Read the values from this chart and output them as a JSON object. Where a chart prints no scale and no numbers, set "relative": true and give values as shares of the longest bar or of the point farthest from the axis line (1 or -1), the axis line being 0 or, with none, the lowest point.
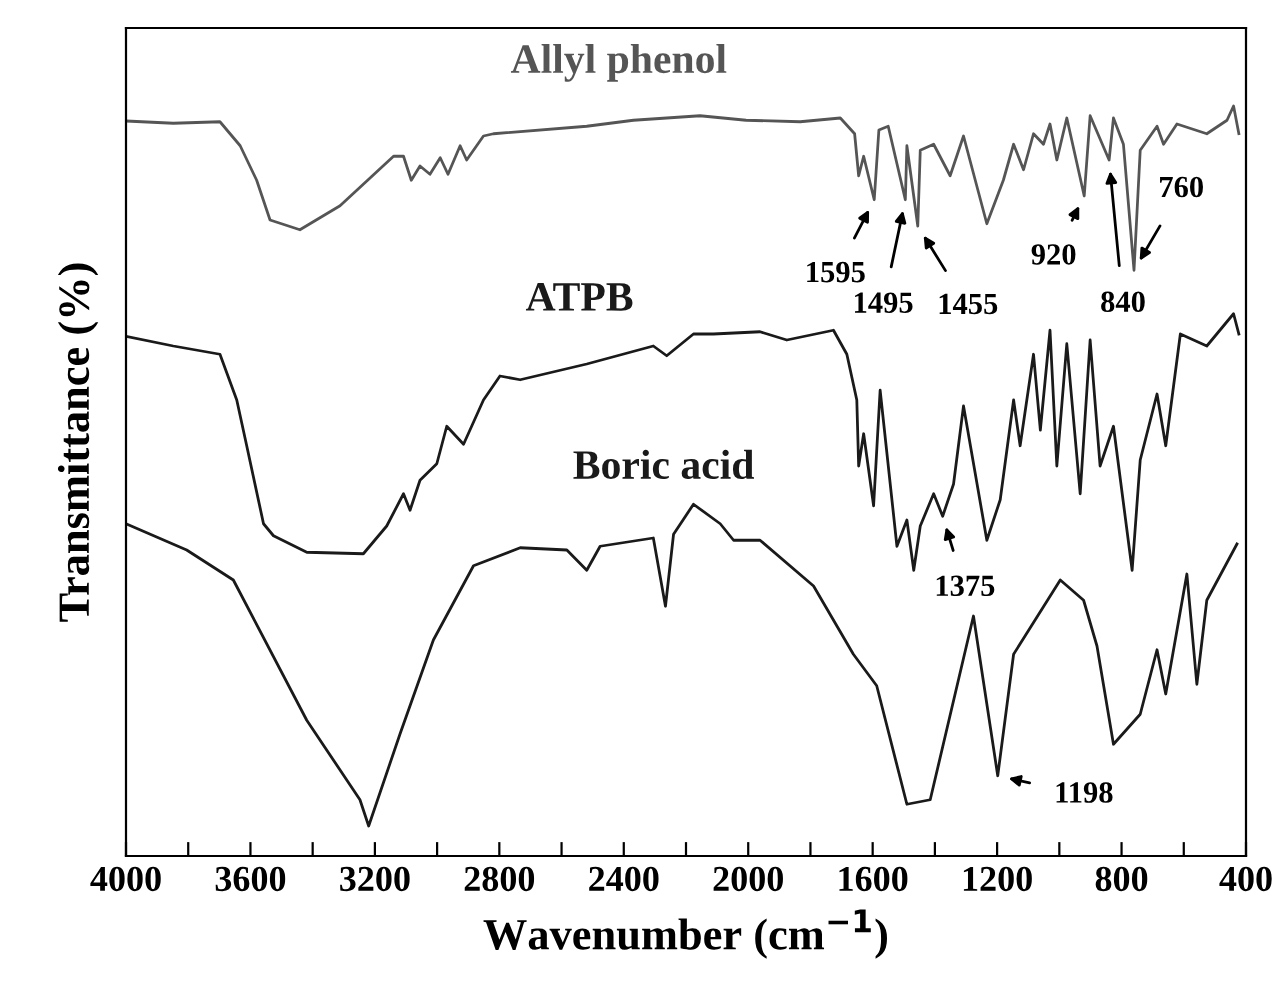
{
  "chart_data": {
    "type": "line",
    "relative": true,
    "xlabel": "Wavenumber (cm$^{−1}$)",
    "ylabel": "Transmittance (%)",
    "xlim": [
      4000,
      400
    ],
    "xticks": [
      4000,
      {
        "value": 3800,
        "label": null
      },
      3600,
      {
        "value": 3400,
        "label": null
      },
      3200,
      {
        "value": 3000,
        "label": null
      },
      2800,
      {
        "value": 2600,
        "label": null
      },
      2400,
      {
        "value": 2200,
        "label": null
      },
      2000,
      {
        "value": 1800,
        "label": null
      },
      1600,
      {
        "value": 1400,
        "label": null
      },
      1200,
      {
        "value": 1000,
        "label": null
      },
      800,
      {
        "value": 600,
        "label": null
      },
      400
    ],
    "tick_labels": "x",
    "grid": false,
    "legend": false,
    "marker": "none",
    "line_style": "solid",
    "series": [
      {
        "name": "Allyl phenol",
        "color": "#555555",
        "x": [
          4000,
          3848,
          3698,
          3633,
          3580,
          3537,
          3441,
          3312,
          3140,
          3108,
          3083,
          3055,
          3023,
          2990,
          2965,
          2926,
          2905,
          2851,
          2819,
          2519,
          2369,
          2155,
          2007,
          1833,
          1704,
          1658,
          1645,
          1629,
          1595,
          1580,
          1550,
          1495,
          1490,
          1455,
          1447,
          1404,
          1351,
          1308,
          1233,
          1180,
          1147,
          1115,
          1083,
          1051,
          1030,
          1008,
          976,
          920,
          901,
          840,
          826,
          794,
          760,
          740,
          686,
          665,
          622,
          526,
          461,
          440,
          423
        ],
        "values": [
          0.98,
          0.977,
          0.979,
          0.947,
          0.901,
          0.848,
          0.835,
          0.867,
          0.933,
          0.933,
          0.901,
          0.92,
          0.909,
          0.931,
          0.909,
          0.947,
          0.928,
          0.96,
          0.963,
          0.973,
          0.981,
          0.987,
          0.981,
          0.979,
          0.984,
          0.963,
          0.907,
          0.933,
          0.875,
          0.968,
          0.973,
          0.875,
          0.947,
          0.84,
          0.941,
          0.949,
          0.907,
          0.96,
          0.843,
          0.901,
          0.949,
          0.915,
          0.963,
          0.949,
          0.976,
          0.928,
          0.984,
          0.88,
          0.987,
          0.928,
          0.984,
          0.949,
          0.781,
          0.941,
          0.973,
          0.949,
          0.976,
          0.963,
          0.981,
          1.0,
          0.963
        ]
      },
      {
        "name": "ATPB",
        "color": "#1a1a1a",
        "x": [
          4000,
          3848,
          3698,
          3644,
          3612,
          3558,
          3526,
          3419,
          3237,
          3162,
          3108,
          3087,
          3055,
          3001,
          2969,
          2915,
          2851,
          2798,
          2733,
          2519,
          2305,
          2262,
          2176,
          2112,
          1962,
          1876,
          1726,
          1683,
          1651,
          1645,
          1629,
          1597,
          1576,
          1522,
          1490,
          1468,
          1447,
          1404,
          1375,
          1340,
          1308,
          1233,
          1190,
          1147,
          1126,
          1083,
          1061,
          1030,
          1008,
          976,
          933,
          901,
          869,
          826,
          766,
          740,
          686,
          658,
          611,
          526,
          472,
          440,
          423
        ],
        "values": [
          0.693,
          0.68,
          0.669,
          0.608,
          0.547,
          0.443,
          0.427,
          0.405,
          0.403,
          0.44,
          0.483,
          0.461,
          0.501,
          0.523,
          0.573,
          0.549,
          0.608,
          0.64,
          0.635,
          0.656,
          0.68,
          0.667,
          0.696,
          0.696,
          0.699,
          0.688,
          0.701,
          0.669,
          0.608,
          0.52,
          0.563,
          0.467,
          0.621,
          0.413,
          0.448,
          0.381,
          0.44,
          0.483,
          0.453,
          0.496,
          0.6,
          0.421,
          0.475,
          0.608,
          0.547,
          0.669,
          0.568,
          0.701,
          0.52,
          0.683,
          0.483,
          0.688,
          0.52,
          0.573,
          0.381,
          0.528,
          0.616,
          0.547,
          0.696,
          0.68,
          0.707,
          0.723,
          0.696
        ]
      },
      {
        "name": "Boric acid",
        "color": "#1a1a1a",
        "x": [
          4000,
          3805,
          3655,
          3419,
          3248,
          3220,
          3119,
          3012,
          2883,
          2733,
          2583,
          2519,
          2476,
          2305,
          2266,
          2240,
          2176,
          2090,
          2047,
          1962,
          1790,
          1662,
          1587,
          1490,
          1415,
          1276,
          1198,
          1147,
          997,
          922,
          879,
          826,
          740,
          686,
          658,
          590,
          558,
          526,
          429
        ],
        "values": [
          0.443,
          0.408,
          0.368,
          0.181,
          0.075,
          0.04,
          0.163,
          0.288,
          0.387,
          0.411,
          0.408,
          0.381,
          0.413,
          0.424,
          0.333,
          0.429,
          0.469,
          0.443,
          0.421,
          0.421,
          0.36,
          0.269,
          0.227,
          0.069,
          0.075,
          0.32,
          0.107,
          0.269,
          0.368,
          0.341,
          0.28,
          0.149,
          0.189,
          0.275,
          0.216,
          0.376,
          0.229,
          0.341,
          0.416
        ]
      }
    ],
    "annotations": [
      {
        "text": "1595",
        "x": 1595,
        "y": 0.875
      },
      {
        "text": "1495",
        "x": 1495,
        "y": 0.875
      },
      {
        "text": "1455",
        "x": 1455,
        "y": 0.84
      },
      {
        "text": "920",
        "x": 920,
        "y": 0.88
      },
      {
        "text": "840",
        "x": 840,
        "y": 0.928
      },
      {
        "text": "760",
        "x": 760,
        "y": 0.781
      },
      {
        "text": "1375",
        "x": 1375,
        "y": 0.453
      },
      {
        "text": "1198",
        "x": 1198,
        "y": 0.107
      }
    ]
  }
}
